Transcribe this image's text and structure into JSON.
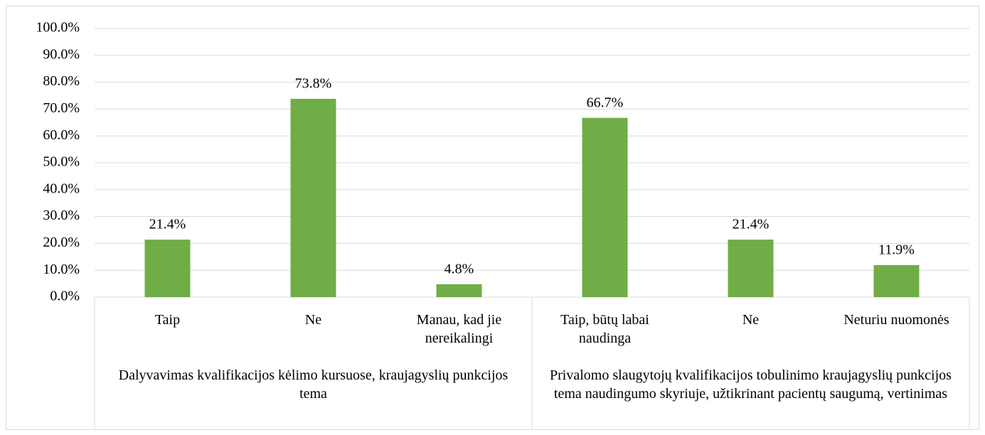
{
  "chart_data": {
    "type": "bar",
    "groups": [
      {
        "name": "Dalyvavimas kvalifikacijos kėlimo kursuose, kraujagyslių punkcijos tema",
        "categories": [
          "Taip",
          "Ne",
          "Manau, kad jie nereikalingi"
        ],
        "values": [
          21.4,
          73.8,
          4.8
        ],
        "value_labels": [
          "21.4%",
          "73.8%",
          "4.8%"
        ]
      },
      {
        "name": "Privalomo slaugytojų kvalifikacijos tobulinimo kraujagyslių punkcijos tema naudingumo skyriuje, užtikrinant pacientų saugumą, vertinimas",
        "categories": [
          "Taip, būtų labai naudinga",
          "Ne",
          "Neturiu nuomonės"
        ],
        "values": [
          66.7,
          21.4,
          11.9
        ],
        "value_labels": [
          "66.7%",
          "21.4%",
          "11.9%"
        ]
      }
    ],
    "color": "#70ad47",
    "ylim": [
      0,
      100
    ],
    "yticks": [
      {
        "value": 0,
        "label": "0.0%"
      },
      {
        "value": 10,
        "label": "10.0%"
      },
      {
        "value": 20,
        "label": "20.0%"
      },
      {
        "value": 30,
        "label": "30.0%"
      },
      {
        "value": 40,
        "label": "40.0%"
      },
      {
        "value": 50,
        "label": "50.0%"
      },
      {
        "value": 60,
        "label": "60.0%"
      },
      {
        "value": 70,
        "label": "70.0%"
      },
      {
        "value": 80,
        "label": "80.0%"
      },
      {
        "value": 90,
        "label": "90.0%"
      },
      {
        "value": 100,
        "label": "100.0%"
      }
    ],
    "grid": true
  }
}
